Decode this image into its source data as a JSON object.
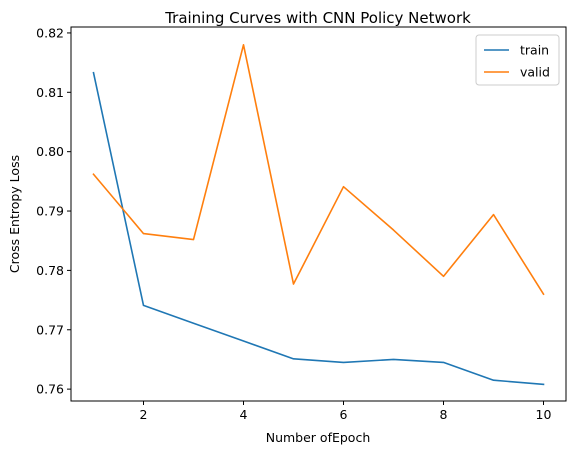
{
  "chart_data": {
    "type": "line",
    "title": "Training Curves with CNN Policy Network",
    "xlabel": "Number ofEpoch",
    "ylabel": "Cross Entropy Loss",
    "x": [
      1,
      2,
      3,
      4,
      5,
      6,
      7,
      8,
      9,
      10
    ],
    "xlim": [
      0.55,
      10.45
    ],
    "ylim": [
      0.758,
      0.821
    ],
    "xticks": [
      2,
      4,
      6,
      8,
      10
    ],
    "xtick_labels": [
      "2",
      "4",
      "6",
      "8",
      "10"
    ],
    "yticks": [
      0.76,
      0.77,
      0.78,
      0.79,
      0.8,
      0.81,
      0.82
    ],
    "ytick_labels": [
      "0.76",
      "0.77",
      "0.78",
      "0.79",
      "0.80",
      "0.81",
      "0.82"
    ],
    "grid": false,
    "legend_position": "top-right",
    "series": [
      {
        "name": "train",
        "color": "#1f77b4",
        "values": [
          0.8133,
          0.7741,
          0.7711,
          0.7681,
          0.7651,
          0.7645,
          0.765,
          0.7645,
          0.7615,
          0.7608
        ]
      },
      {
        "name": "valid",
        "color": "#ff7f0e",
        "values": [
          0.7962,
          0.7862,
          0.7852,
          0.818,
          0.7777,
          0.7941,
          0.7868,
          0.779,
          0.7894,
          0.776
        ]
      }
    ]
  }
}
